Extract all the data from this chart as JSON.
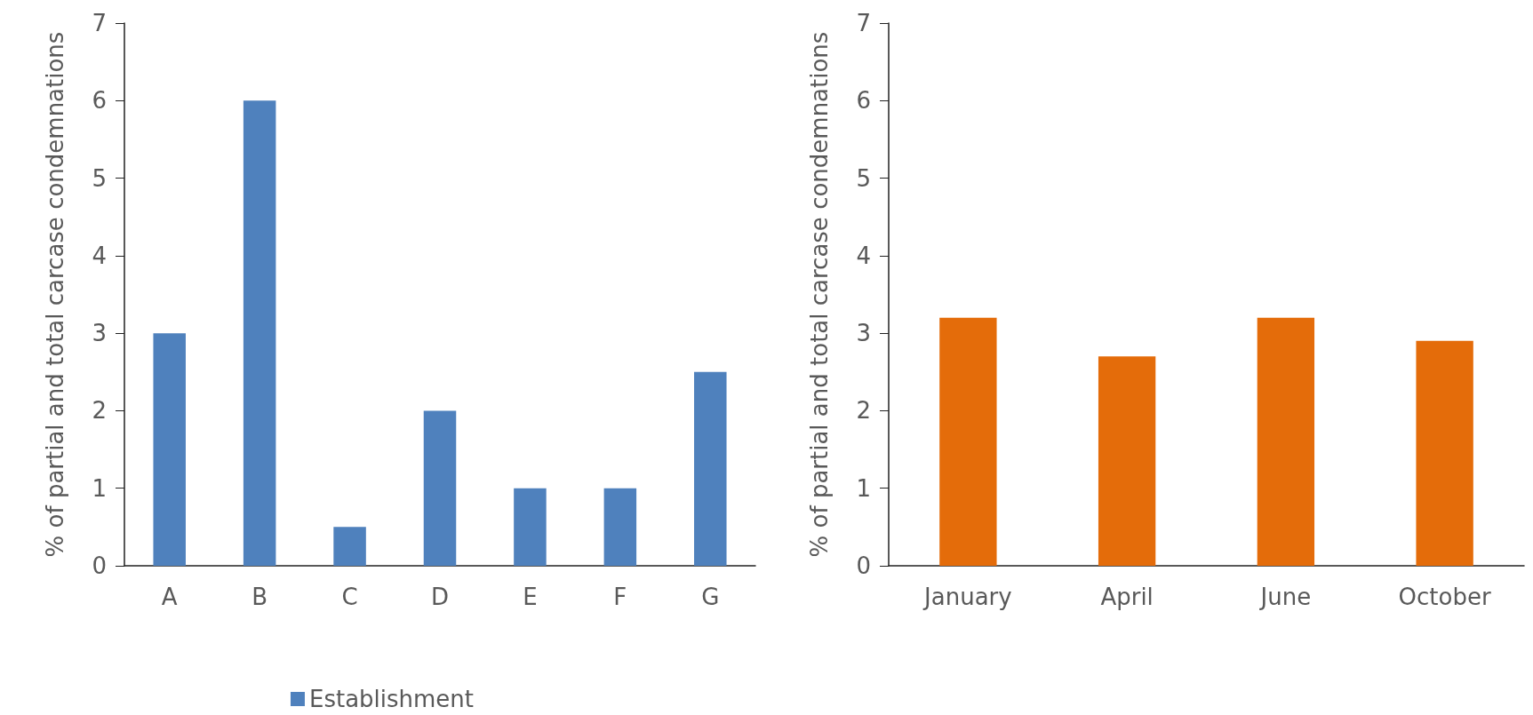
{
  "chart_data": [
    {
      "type": "bar",
      "ylabel": "% of partial and total carcase condemnations",
      "categories": [
        "A",
        "B",
        "C",
        "D",
        "E",
        "F",
        "G"
      ],
      "series": [
        {
          "name": "Establishment",
          "color": "#4f81bd",
          "values": [
            3,
            6,
            0.5,
            2,
            1,
            1,
            2.5
          ]
        }
      ],
      "ylim": [
        0,
        7
      ],
      "yticks": [
        0,
        1,
        2,
        3,
        4,
        5,
        6,
        7
      ],
      "grid": false,
      "legend": "bottom"
    },
    {
      "type": "bar",
      "ylabel": "% of partial and total carcase condemnations",
      "categories": [
        "January",
        "April",
        "June",
        "October"
      ],
      "series": [
        {
          "color": "#e46c0a",
          "values": [
            3.2,
            2.7,
            3.2,
            2.9
          ]
        }
      ],
      "ylim": [
        0,
        7
      ],
      "yticks": [
        0,
        1,
        2,
        3,
        4,
        5,
        6,
        7
      ],
      "grid": false,
      "legend": false
    }
  ]
}
